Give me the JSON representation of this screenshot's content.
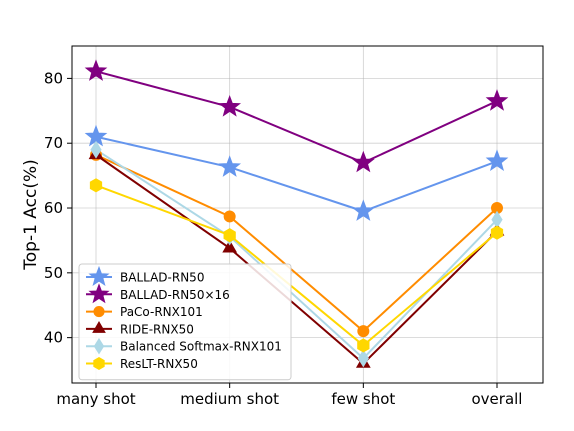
{
  "chart_data": {
    "type": "line",
    "categories": [
      "many shot",
      "medium shot",
      "few shot",
      "overall"
    ],
    "xlabel": "",
    "ylabel": "Top-1 Acc(%)",
    "ylim": [
      33,
      85
    ],
    "yticks": [
      40,
      50,
      60,
      70,
      80
    ],
    "grid": true,
    "legend_position": "lower-left",
    "series": [
      {
        "name": "BALLAD-RN50",
        "values": [
          71.0,
          66.3,
          59.5,
          67.2
        ],
        "color": "#6495ED",
        "marker": "star"
      },
      {
        "name": "BALLAD-RN50×16",
        "values": [
          81.1,
          75.6,
          67.0,
          76.5
        ],
        "color": "#800080",
        "marker": "star"
      },
      {
        "name": "PaCo-RNX101",
        "values": [
          68.2,
          58.7,
          41.0,
          60.0
        ],
        "color": "#FF8C00",
        "marker": "circle"
      },
      {
        "name": "RIDE-RNX50",
        "values": [
          68.2,
          53.8,
          36.0,
          56.4
        ],
        "color": "#800000",
        "marker": "triangle"
      },
      {
        "name": "Balanced Softmax-RNX101",
        "values": [
          69.0,
          55.6,
          36.8,
          58.2
        ],
        "color": "#ADD8E6",
        "marker": "diamond"
      },
      {
        "name": "ResLT-RNX50",
        "values": [
          63.5,
          55.8,
          38.8,
          56.2
        ],
        "color": "#FFD700",
        "marker": "hexagon"
      }
    ]
  }
}
